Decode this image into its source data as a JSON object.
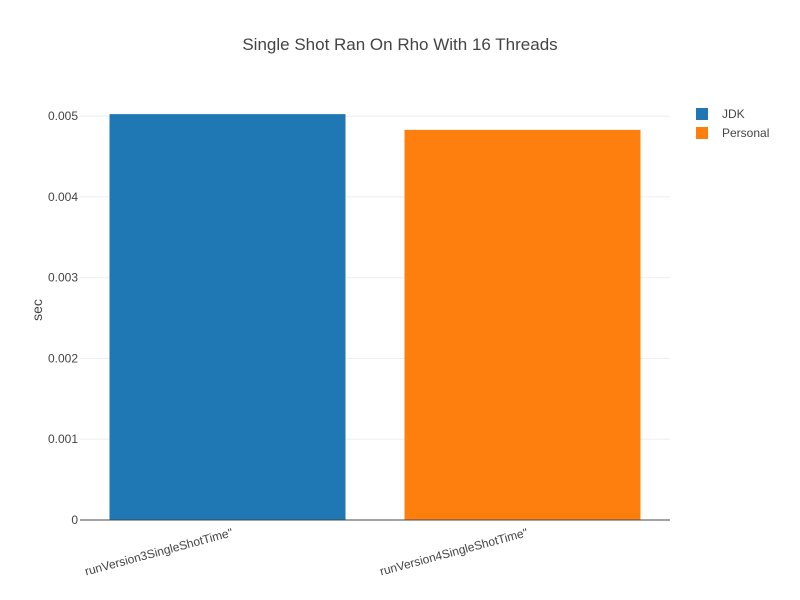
{
  "chart_data": {
    "type": "bar",
    "title": "Single Shot Ran On Rho With 16 Threads",
    "ylabel": "sec",
    "xlabel": "",
    "categories": [
      "runVersion3SingleShotTime\"",
      "runVersion4SingleShotTime\""
    ],
    "series": [
      {
        "name": "JDK",
        "color": "#1f77b4",
        "values": [
          0.005025,
          null
        ]
      },
      {
        "name": "Personal",
        "color": "#ff7f0e",
        "values": [
          null,
          0.00483
        ]
      }
    ],
    "ylim": [
      0,
      0.0052
    ],
    "yticks": [
      {
        "value": 0,
        "label": "0"
      },
      {
        "value": 0.001,
        "label": "0.001"
      },
      {
        "value": 0.002,
        "label": "0.002"
      },
      {
        "value": 0.003,
        "label": "0.003"
      },
      {
        "value": 0.004,
        "label": "0.004"
      },
      {
        "value": 0.005,
        "label": "0.005"
      }
    ],
    "grid": true,
    "legend_position": "top-right"
  }
}
